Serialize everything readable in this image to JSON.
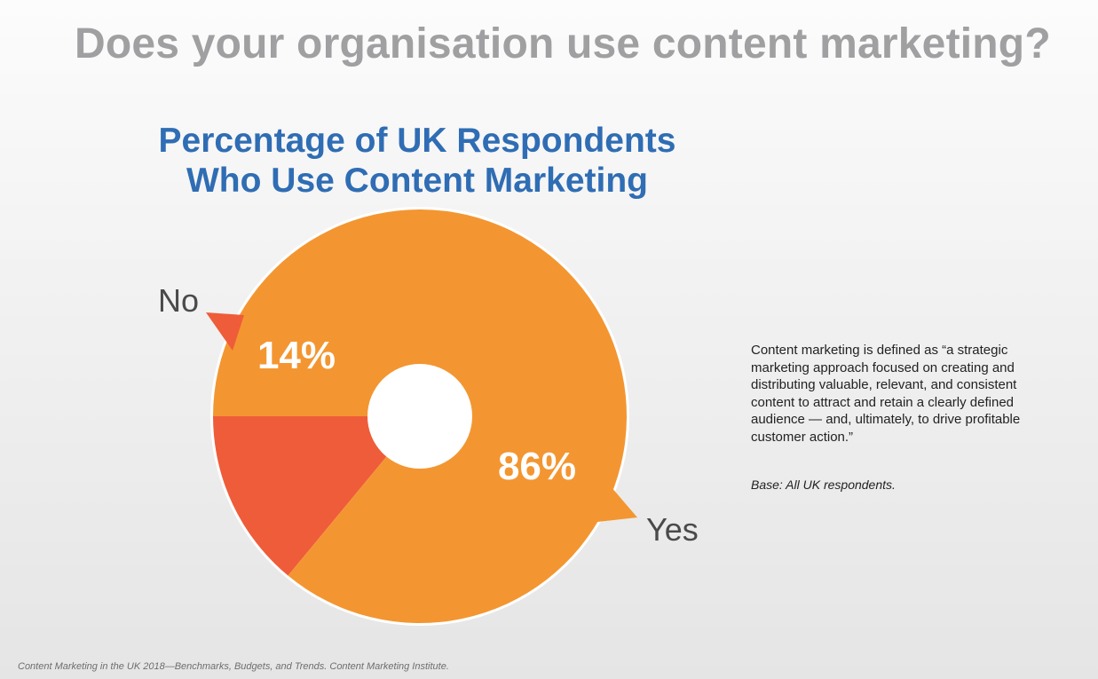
{
  "page": {
    "title": "Does your organisation use content marketing?"
  },
  "chart_data": {
    "type": "pie",
    "title_lines": [
      "Percentage of UK Respondents",
      "Who Use Content Marketing"
    ],
    "slices": [
      {
        "label": "No",
        "value": 14,
        "value_label": "14%",
        "color": "#ef5c39"
      },
      {
        "label": "Yes",
        "value": 86,
        "value_label": "86%",
        "color": "#f39631"
      }
    ],
    "center_hole": true
  },
  "definition_text": "Content marketing is defined as “a strategic marketing approach focused on creating and distributing valuable, relevant, and consistent content to attract and retain a clearly defined audience — and, ultimately, to drive profitable customer action.”",
  "base_note": "Base: All UK respondents.",
  "source": "Content Marketing in the UK 2018—Benchmarks, Budgets, and Trends. Content Marketing Institute."
}
